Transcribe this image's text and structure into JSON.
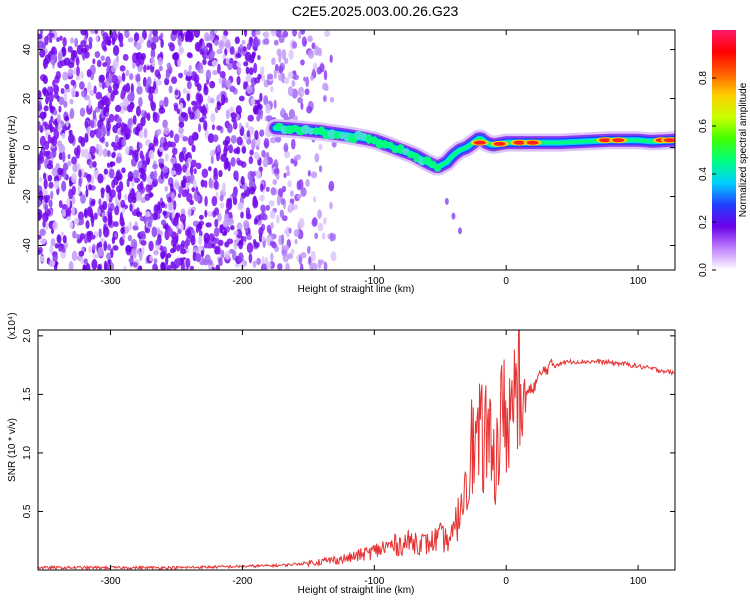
{
  "title": "C2E5.2025.003.00.26.G23",
  "chart_data": [
    {
      "type": "heatmap",
      "xlabel": "Height of straight line (km)",
      "ylabel": "Frequency (Hz)",
      "xlim": [
        -355,
        128
      ],
      "ylim": [
        -50,
        48
      ],
      "x_ticks": [
        -300,
        -200,
        -100,
        0,
        100
      ],
      "y_ticks": [
        -40,
        -20,
        0,
        20,
        40
      ],
      "colorbar": {
        "label": "Normalized spectral amplitude",
        "ticks": [
          0.0,
          0.2,
          0.4,
          0.6,
          0.8
        ],
        "range": [
          0,
          1
        ],
        "colors": [
          "#ffffff",
          "#c080ff",
          "#6a00e8",
          "#2040ff",
          "#00d0ff",
          "#00ff80",
          "#40ff00",
          "#c8ff00",
          "#ffd000",
          "#ff6000",
          "#ff0000",
          "#ff1a6a"
        ]
      },
      "ridge": {
        "x": [
          -175,
          -160,
          -140,
          -120,
          -100,
          -90,
          -80,
          -70,
          -60,
          -52,
          -45,
          -40,
          -35,
          -30,
          -25,
          -20,
          -15,
          -10,
          -5,
          0,
          20,
          40,
          60,
          80,
          100,
          110,
          128
        ],
        "y": [
          8,
          7.5,
          6.5,
          5,
          3,
          1,
          -1,
          -3,
          -6,
          -8,
          -6,
          -3,
          -1,
          0,
          2,
          4,
          2,
          1,
          1.5,
          2,
          2,
          2,
          2.5,
          3,
          3,
          2.5,
          3
        ]
      },
      "noise_region_x": [
        -355,
        -130
      ]
    },
    {
      "type": "line",
      "xlabel": "Height of straight line (km)",
      "ylabel": "SNR (10 * v/v)",
      "y_multiplier": "(x10⁴)",
      "xlim": [
        -355,
        128
      ],
      "ylim": [
        0,
        2.05
      ],
      "x_ticks": [
        -300,
        -200,
        -100,
        0,
        100
      ],
      "y_ticks": [
        0.5,
        1.0,
        1.5,
        2.0
      ],
      "series": [
        {
          "color": "#e63232",
          "x": [
            -355,
            -300,
            -250,
            -200,
            -170,
            -150,
            -120,
            -100,
            -90,
            -80,
            -70,
            -60,
            -50,
            -45,
            -40,
            -35,
            -30,
            -28,
            -25,
            -20,
            -15,
            -10,
            -5,
            0,
            5,
            10,
            15,
            20,
            25,
            30,
            35,
            40,
            50,
            60,
            70,
            80,
            90,
            100,
            110,
            120,
            128
          ],
          "y": [
            0.02,
            0.02,
            0.02,
            0.03,
            0.04,
            0.06,
            0.1,
            0.16,
            0.2,
            0.22,
            0.25,
            0.22,
            0.28,
            0.25,
            0.3,
            0.5,
            0.9,
            1.05,
            1.05,
            1.1,
            1.15,
            0.9,
            1.2,
            1.35,
            1.35,
            1.45,
            1.5,
            1.55,
            1.65,
            1.72,
            1.75,
            1.77,
            1.78,
            1.78,
            1.78,
            1.77,
            1.76,
            1.74,
            1.72,
            1.7,
            1.68
          ]
        }
      ]
    }
  ]
}
